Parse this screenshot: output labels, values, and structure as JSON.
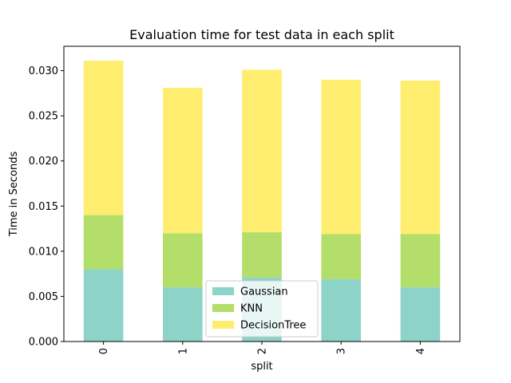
{
  "chart_data": {
    "type": "bar",
    "stacked": true,
    "title": "Evaluation time for test data in each split",
    "xlabel": "split",
    "ylabel": "Time in Seconds",
    "categories": [
      "0",
      "1",
      "2",
      "3",
      "4"
    ],
    "series": [
      {
        "name": "Gaussian",
        "color": "#8dd3c7",
        "values": [
          0.008,
          0.006,
          0.0071,
          0.0069,
          0.006
        ]
      },
      {
        "name": "KNN",
        "color": "#b3de69",
        "values": [
          0.006,
          0.006,
          0.005,
          0.005,
          0.0059
        ]
      },
      {
        "name": "DecisionTree",
        "color": "#ffed6f",
        "values": [
          0.0171,
          0.0161,
          0.018,
          0.0171,
          0.017
        ]
      }
    ],
    "ylim": [
      0,
      0.0327
    ],
    "yticks": [
      "0.000",
      "0.005",
      "0.010",
      "0.015",
      "0.020",
      "0.025",
      "0.030"
    ],
    "legend": "lower-center",
    "grid": false
  }
}
